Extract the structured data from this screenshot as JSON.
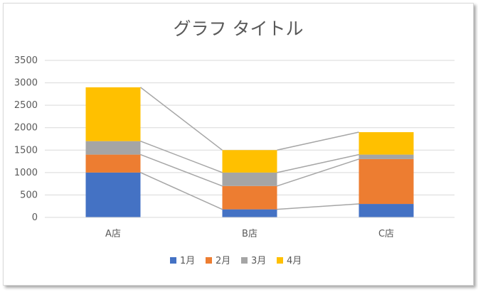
{
  "chart_data": {
    "type": "bar",
    "stacked": true,
    "title": "グラフ タイトル",
    "categories": [
      "A店",
      "B店",
      "C店"
    ],
    "series": [
      {
        "name": "1月",
        "values": [
          1000,
          180,
          300
        ],
        "color": "#4472c4"
      },
      {
        "name": "2月",
        "values": [
          400,
          520,
          1000
        ],
        "color": "#ed7d31"
      },
      {
        "name": "3月",
        "values": [
          300,
          300,
          100
        ],
        "color": "#a5a5a5"
      },
      {
        "name": "4月",
        "values": [
          1200,
          500,
          500
        ],
        "color": "#ffc000"
      }
    ],
    "ylim": [
      0,
      3500
    ],
    "yticks": [
      "0",
      "500",
      "1000",
      "1500",
      "2000",
      "2500",
      "3000",
      "3500"
    ],
    "grid": true,
    "series_lines": true,
    "legend_position": "bottom",
    "xlabel": "",
    "ylabel": ""
  }
}
